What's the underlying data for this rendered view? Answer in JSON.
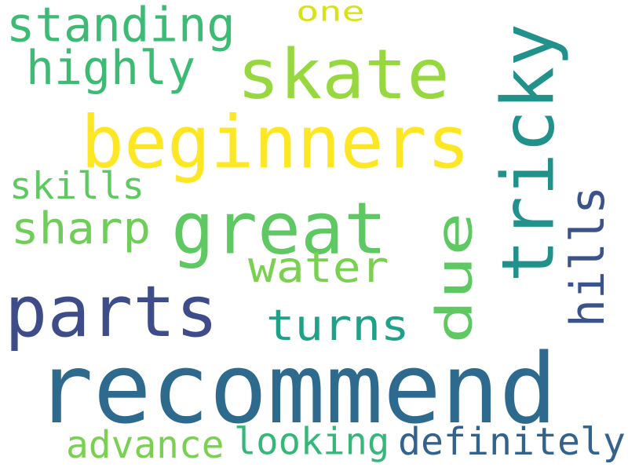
{
  "words": [
    {
      "key": "recommend",
      "text": "recommend",
      "color": "#2e6a8e",
      "rotated": false
    },
    {
      "key": "beginners",
      "text": "beginners",
      "color": "#fde725",
      "rotated": false
    },
    {
      "key": "skate",
      "text": "skate",
      "color": "#97d83f",
      "rotated": false
    },
    {
      "key": "great",
      "text": "great",
      "color": "#5ec962",
      "rotated": false
    },
    {
      "key": "parts",
      "text": "parts",
      "color": "#3e4c8a",
      "rotated": false
    },
    {
      "key": "tricky",
      "text": "tricky",
      "color": "#21918c",
      "rotated": true
    },
    {
      "key": "due",
      "text": "due",
      "color": "#5ec962",
      "rotated": true
    },
    {
      "key": "standing",
      "text": "standing",
      "color": "#3cbb75",
      "rotated": false
    },
    {
      "key": "highly",
      "text": "highly",
      "color": "#3cbb75",
      "rotated": false
    },
    {
      "key": "hills",
      "text": "hills",
      "color": "#3b528b",
      "rotated": true
    },
    {
      "key": "sharp",
      "text": "sharp",
      "color": "#6ece58",
      "rotated": false
    },
    {
      "key": "water",
      "text": "water",
      "color": "#7ad151",
      "rotated": false
    },
    {
      "key": "turns",
      "text": "turns",
      "color": "#1fa187",
      "rotated": false
    },
    {
      "key": "skills",
      "text": "skills",
      "color": "#5ec962",
      "rotated": false
    },
    {
      "key": "one",
      "text": "one",
      "color": "#d8e219",
      "rotated": false
    },
    {
      "key": "definitely",
      "text": "definitely",
      "color": "#33638d",
      "rotated": false
    },
    {
      "key": "looking",
      "text": "looking",
      "color": "#35b779",
      "rotated": false
    },
    {
      "key": "advance",
      "text": "advance",
      "color": "#7ad151",
      "rotated": false
    }
  ]
}
